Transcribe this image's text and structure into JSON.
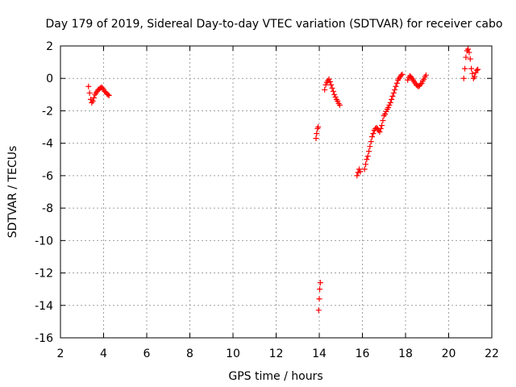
{
  "chart_data": {
    "type": "scatter",
    "title": "Day 179 of 2019, Sidereal Day-to-day VTEC variation (SDTVAR) for receiver cabo",
    "xlabel": "GPS time / hours",
    "ylabel": "SDTVAR / TECUs",
    "xlim": [
      2,
      22
    ],
    "ylim": [
      -16,
      2
    ],
    "xticks": [
      2,
      4,
      6,
      8,
      10,
      12,
      14,
      16,
      18,
      20,
      22
    ],
    "yticks": [
      -16,
      -14,
      -12,
      -10,
      -8,
      -6,
      -4,
      -2,
      0,
      2
    ],
    "grid": true,
    "marker": "+",
    "color": "#ff0000",
    "series": [
      {
        "name": "SDTVAR",
        "points": [
          [
            3.3,
            -0.5
          ],
          [
            3.35,
            -0.9
          ],
          [
            3.4,
            -1.3
          ],
          [
            3.45,
            -1.5
          ],
          [
            3.5,
            -1.4
          ],
          [
            3.55,
            -1.2
          ],
          [
            3.6,
            -1.0
          ],
          [
            3.65,
            -0.9
          ],
          [
            3.7,
            -0.8
          ],
          [
            3.75,
            -0.7
          ],
          [
            3.8,
            -0.65
          ],
          [
            3.85,
            -0.6
          ],
          [
            3.9,
            -0.55
          ],
          [
            3.95,
            -0.6
          ],
          [
            4.0,
            -0.7
          ],
          [
            4.05,
            -0.8
          ],
          [
            4.1,
            -0.85
          ],
          [
            4.15,
            -0.95
          ],
          [
            4.2,
            -1.0
          ],
          [
            4.25,
            -1.05
          ],
          [
            13.85,
            -3.7
          ],
          [
            13.88,
            -3.4
          ],
          [
            13.92,
            -3.1
          ],
          [
            13.95,
            -3.0
          ],
          [
            13.97,
            -14.3
          ],
          [
            14.0,
            -13.6
          ],
          [
            14.02,
            -13.0
          ],
          [
            14.05,
            -12.6
          ],
          [
            14.25,
            -0.7
          ],
          [
            14.3,
            -0.4
          ],
          [
            14.35,
            -0.25
          ],
          [
            14.4,
            -0.15
          ],
          [
            14.45,
            -0.05
          ],
          [
            14.5,
            -0.2
          ],
          [
            14.55,
            -0.4
          ],
          [
            14.6,
            -0.6
          ],
          [
            14.65,
            -0.8
          ],
          [
            14.7,
            -1.0
          ],
          [
            14.75,
            -1.15
          ],
          [
            14.8,
            -1.3
          ],
          [
            14.85,
            -1.4
          ],
          [
            14.9,
            -1.55
          ],
          [
            14.95,
            -1.65
          ],
          [
            15.75,
            -6.0
          ],
          [
            15.8,
            -5.8
          ],
          [
            15.85,
            -5.6
          ],
          [
            15.9,
            -5.75
          ],
          [
            16.1,
            -5.6
          ],
          [
            16.15,
            -5.3
          ],
          [
            16.2,
            -5.0
          ],
          [
            16.25,
            -4.8
          ],
          [
            16.3,
            -4.5
          ],
          [
            16.35,
            -4.2
          ],
          [
            16.4,
            -3.9
          ],
          [
            16.45,
            -3.6
          ],
          [
            16.5,
            -3.4
          ],
          [
            16.55,
            -3.2
          ],
          [
            16.6,
            -3.1
          ],
          [
            16.65,
            -3.05
          ],
          [
            16.7,
            -3.1
          ],
          [
            16.75,
            -3.2
          ],
          [
            16.8,
            -3.3
          ],
          [
            16.85,
            -3.1
          ],
          [
            16.9,
            -2.9
          ],
          [
            16.95,
            -2.6
          ],
          [
            17.0,
            -2.3
          ],
          [
            17.05,
            -2.2
          ],
          [
            17.1,
            -2.05
          ],
          [
            17.15,
            -1.9
          ],
          [
            17.2,
            -1.8
          ],
          [
            17.25,
            -1.65
          ],
          [
            17.3,
            -1.5
          ],
          [
            17.35,
            -1.3
          ],
          [
            17.4,
            -1.1
          ],
          [
            17.45,
            -0.9
          ],
          [
            17.5,
            -0.7
          ],
          [
            17.55,
            -0.5
          ],
          [
            17.6,
            -0.3
          ],
          [
            17.65,
            -0.1
          ],
          [
            17.7,
            0.0
          ],
          [
            17.75,
            0.1
          ],
          [
            17.8,
            0.2
          ],
          [
            17.85,
            0.25
          ],
          [
            18.1,
            -0.1
          ],
          [
            18.15,
            0.05
          ],
          [
            18.2,
            0.15
          ],
          [
            18.25,
            0.1
          ],
          [
            18.3,
            0.0
          ],
          [
            18.35,
            -0.1
          ],
          [
            18.4,
            -0.2
          ],
          [
            18.45,
            -0.3
          ],
          [
            18.5,
            -0.4
          ],
          [
            18.55,
            -0.45
          ],
          [
            18.6,
            -0.5
          ],
          [
            18.65,
            -0.45
          ],
          [
            18.7,
            -0.35
          ],
          [
            18.75,
            -0.3
          ],
          [
            18.8,
            -0.15
          ],
          [
            18.85,
            -0.05
          ],
          [
            18.9,
            0.1
          ],
          [
            18.95,
            0.2
          ],
          [
            20.7,
            0.0
          ],
          [
            20.75,
            0.6
          ],
          [
            20.8,
            1.3
          ],
          [
            20.85,
            1.7
          ],
          [
            20.9,
            1.8
          ],
          [
            20.95,
            1.6
          ],
          [
            21.0,
            1.2
          ],
          [
            21.05,
            0.6
          ],
          [
            21.1,
            0.3
          ],
          [
            21.15,
            0.0
          ],
          [
            21.2,
            0.1
          ],
          [
            21.25,
            0.35
          ],
          [
            21.3,
            0.5
          ],
          [
            21.35,
            0.55
          ]
        ]
      }
    ]
  }
}
